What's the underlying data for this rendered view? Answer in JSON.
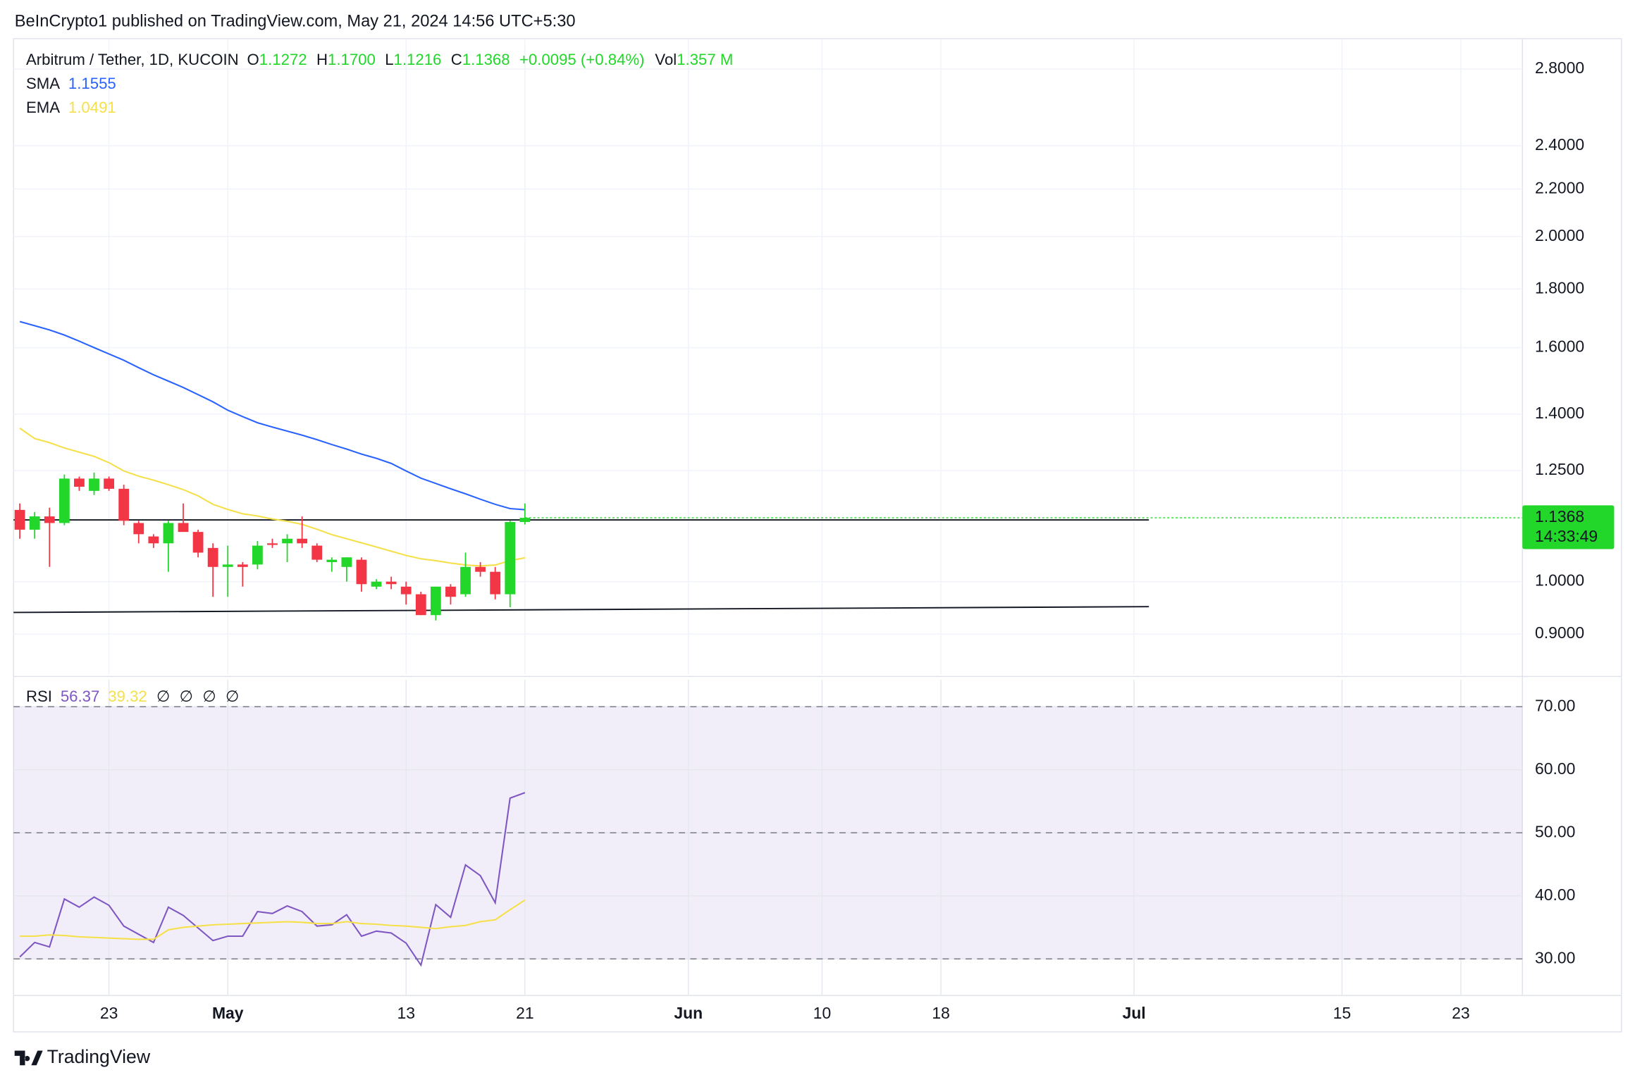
{
  "header": {
    "text": "BeInCrypto1 published on TradingView.com, May 21, 2024 14:56 UTC+5:30"
  },
  "footer": {
    "brand": "TradingView"
  },
  "chart_data": [
    {
      "type": "candlestick",
      "legend": {
        "name": "Arbitrum / Tether, 1D, KUCOIN",
        "items": [
          {
            "label": "O",
            "value": "1.1272"
          },
          {
            "label": "H",
            "value": "1.1700"
          },
          {
            "label": "L",
            "value": "1.1216"
          },
          {
            "label": "C",
            "value": "1.1368"
          }
        ],
        "change": "+0.0095 (+0.84%)",
        "volume_label": "Vol",
        "volume": "1.357 M"
      },
      "x": [
        "2024-04-17",
        "2024-04-18",
        "2024-04-19",
        "2024-04-20",
        "2024-04-21",
        "2024-04-22",
        "2024-04-23",
        "2024-04-24",
        "2024-04-25",
        "2024-04-26",
        "2024-04-27",
        "2024-04-28",
        "2024-04-29",
        "2024-04-30",
        "2024-05-01",
        "2024-05-02",
        "2024-05-03",
        "2024-05-04",
        "2024-05-05",
        "2024-05-06",
        "2024-05-07",
        "2024-05-08",
        "2024-05-09",
        "2024-05-10",
        "2024-05-11",
        "2024-05-12",
        "2024-05-13",
        "2024-05-14",
        "2024-05-15",
        "2024-05-16",
        "2024-05-17",
        "2024-05-18",
        "2024-05-19",
        "2024-05-20",
        "2024-05-21"
      ],
      "open": [
        1.155,
        1.11,
        1.14,
        1.125,
        1.23,
        1.2,
        1.23,
        1.205,
        1.125,
        1.095,
        1.08,
        1.125,
        1.105,
        1.07,
        1.03,
        1.035,
        1.035,
        1.08,
        1.08,
        1.09,
        1.075,
        1.04,
        1.03,
        1.045,
        0.99,
        1.0,
        0.99,
        0.975,
        0.935,
        0.99,
        0.975,
        1.03,
        1.02,
        0.975,
        1.1272
      ],
      "high": [
        1.17,
        1.15,
        1.16,
        1.24,
        1.235,
        1.245,
        1.235,
        1.215,
        1.13,
        1.1,
        1.13,
        1.17,
        1.11,
        1.08,
        1.075,
        1.04,
        1.085,
        1.09,
        1.1,
        1.14,
        1.08,
        1.05,
        1.05,
        1.05,
        1.005,
        1.01,
        1.0,
        0.98,
        0.99,
        0.995,
        1.06,
        1.04,
        1.03,
        1.13,
        1.17
      ],
      "low": [
        1.09,
        1.09,
        1.03,
        1.12,
        1.2,
        1.19,
        1.2,
        1.12,
        1.08,
        1.07,
        1.02,
        1.12,
        1.05,
        0.97,
        0.97,
        0.99,
        1.025,
        1.07,
        1.04,
        1.07,
        1.04,
        1.02,
        1.0,
        0.98,
        0.985,
        0.985,
        0.955,
        0.935,
        0.925,
        0.955,
        0.97,
        1.01,
        0.965,
        0.95,
        1.1216
      ],
      "close": [
        1.11,
        1.14,
        1.125,
        1.23,
        1.21,
        1.23,
        1.205,
        1.13,
        1.1,
        1.08,
        1.125,
        1.105,
        1.06,
        1.03,
        1.035,
        1.03,
        1.075,
        1.077,
        1.09,
        1.08,
        1.045,
        1.045,
        1.05,
        0.995,
        1.0,
        0.995,
        0.975,
        0.935,
        0.99,
        0.97,
        1.03,
        1.02,
        0.975,
        1.1272,
        1.1368
      ],
      "up_color": "#22d62a",
      "down_color": "#f23645",
      "series": [
        {
          "name": "SMA",
          "color": "#2962ff",
          "values": [
            1.686,
            1.672,
            1.658,
            1.641,
            1.621,
            1.6,
            1.58,
            1.56,
            1.537,
            1.515,
            1.496,
            1.477,
            1.456,
            1.435,
            1.411,
            1.393,
            1.376,
            1.364,
            1.353,
            1.342,
            1.33,
            1.317,
            1.305,
            1.292,
            1.281,
            1.268,
            1.249,
            1.231,
            1.218,
            1.205,
            1.193,
            1.18,
            1.168,
            1.158,
            1.1555
          ]
        },
        {
          "name": "EMA",
          "color": "#f5e04a",
          "values": [
            1.361,
            1.333,
            1.322,
            1.308,
            1.297,
            1.286,
            1.27,
            1.249,
            1.236,
            1.226,
            1.215,
            1.203,
            1.188,
            1.168,
            1.156,
            1.146,
            1.141,
            1.134,
            1.129,
            1.122,
            1.111,
            1.099,
            1.09,
            1.081,
            1.072,
            1.063,
            1.054,
            1.047,
            1.043,
            1.038,
            1.034,
            1.032,
            1.034,
            1.043,
            1.0491
          ]
        }
      ],
      "lines": [
        {
          "color": "#131722",
          "x": [
            "2024-04-17",
            "2024-07-02"
          ],
          "y": [
            0.94,
            0.951
          ]
        },
        {
          "color": "#131722",
          "x": [
            "2024-04-17",
            "2024-07-02"
          ],
          "y": [
            1.132,
            1.132
          ]
        }
      ],
      "countdown": "14:33:49",
      "log_scale": true,
      "xlim": [
        "2024-04-17",
        "2024-07-27"
      ],
      "ylim": [
        0.83,
        2.97
      ],
      "yticks": [
        {
          "value": 2.8,
          "label": "2.8000"
        },
        {
          "value": 2.4,
          "label": "2.4000"
        },
        {
          "value": 2.2,
          "label": "2.2000"
        },
        {
          "value": 2.0,
          "label": "2.0000"
        },
        {
          "value": 1.8,
          "label": "1.8000"
        },
        {
          "value": 1.6,
          "label": "1.6000"
        },
        {
          "value": 1.4,
          "label": "1.4000"
        },
        {
          "value": 1.25,
          "label": "1.2500"
        },
        {
          "value": 1.0,
          "label": "1.0000"
        },
        {
          "value": 0.9,
          "label": "0.9000"
        }
      ],
      "xticks": [
        {
          "value": "2024-04-23",
          "label": "23"
        },
        {
          "value": "2024-05-01",
          "label": "May"
        },
        {
          "value": "2024-05-13",
          "label": "13"
        },
        {
          "value": "2024-05-21",
          "label": "21"
        },
        {
          "value": "2024-06-01",
          "label": "Jun"
        },
        {
          "value": "2024-06-10",
          "label": "10"
        },
        {
          "value": "2024-06-18",
          "label": "18"
        },
        {
          "value": "2024-07-01",
          "label": "Jul"
        },
        {
          "value": "2024-07-15",
          "label": "15"
        },
        {
          "value": "2024-07-23",
          "label": "23"
        }
      ],
      "grid": true
    },
    {
      "type": "line",
      "title": "RSI",
      "extra_legend": [
        "∅",
        "∅",
        "∅",
        "∅"
      ],
      "x": [
        "2024-04-17",
        "2024-04-18",
        "2024-04-19",
        "2024-04-20",
        "2024-04-21",
        "2024-04-22",
        "2024-04-23",
        "2024-04-24",
        "2024-04-25",
        "2024-04-26",
        "2024-04-27",
        "2024-04-28",
        "2024-04-29",
        "2024-04-30",
        "2024-05-01",
        "2024-05-02",
        "2024-05-03",
        "2024-05-04",
        "2024-05-05",
        "2024-05-06",
        "2024-05-07",
        "2024-05-08",
        "2024-05-09",
        "2024-05-10",
        "2024-05-11",
        "2024-05-12",
        "2024-05-13",
        "2024-05-14",
        "2024-05-15",
        "2024-05-16",
        "2024-05-17",
        "2024-05-18",
        "2024-05-19",
        "2024-05-20",
        "2024-05-21"
      ],
      "series": [
        {
          "name": "RSI",
          "color": "#7e57c2",
          "values": [
            30.3,
            32.6,
            31.9,
            39.5,
            38.2,
            39.8,
            38.5,
            35.2,
            33.9,
            32.6,
            38.2,
            36.9,
            34.9,
            32.9,
            33.6,
            33.6,
            37.5,
            37.2,
            38.4,
            37.5,
            35.2,
            35.4,
            37.0,
            33.6,
            34.4,
            34.1,
            32.5,
            29.0,
            38.6,
            36.6,
            44.9,
            43.2,
            38.9,
            55.5,
            56.37
          ]
        },
        {
          "name": "RSI MA",
          "color": "#f5e04a",
          "values": [
            33.6,
            33.6,
            33.8,
            33.7,
            33.5,
            33.4,
            33.3,
            33.2,
            33.1,
            33.1,
            34.6,
            35.0,
            35.2,
            35.4,
            35.5,
            35.6,
            35.7,
            35.8,
            35.9,
            35.8,
            35.6,
            35.6,
            35.9,
            35.6,
            35.5,
            35.3,
            35.2,
            35.0,
            34.8,
            35.1,
            35.3,
            35.9,
            36.2,
            37.8,
            39.32
          ]
        }
      ],
      "band": [
        30,
        70
      ],
      "dashed_levels": [
        70,
        50,
        30
      ],
      "xlim": [
        "2024-04-17",
        "2024-07-27"
      ],
      "ylim": [
        24.2,
        74.3
      ],
      "yticks": [
        {
          "value": 70,
          "label": "70.00"
        },
        {
          "value": 60,
          "label": "60.00"
        },
        {
          "value": 50,
          "label": "50.00"
        },
        {
          "value": 40,
          "label": "40.00"
        },
        {
          "value": 30,
          "label": "30.00"
        }
      ],
      "grid": true
    }
  ]
}
